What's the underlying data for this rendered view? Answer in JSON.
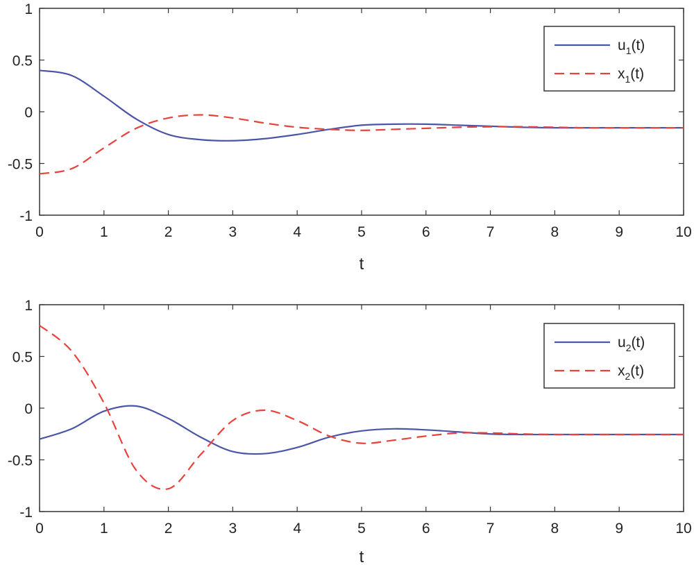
{
  "chart_data": [
    {
      "type": "line",
      "xlabel": "t",
      "ylabel": "",
      "xlim": [
        0,
        10
      ],
      "ylim": [
        -1,
        1
      ],
      "xticks": [
        "0",
        "1",
        "2",
        "3",
        "4",
        "5",
        "6",
        "7",
        "8",
        "9",
        "10"
      ],
      "yticks": [
        "1",
        "0.5",
        "0",
        "-0.5",
        "-1"
      ],
      "grid": false,
      "legend_position": "top-right",
      "x": [
        0,
        0.5,
        1,
        1.5,
        2,
        2.5,
        3,
        3.5,
        4,
        4.5,
        5,
        5.5,
        6,
        6.5,
        7,
        7.5,
        8,
        8.5,
        9,
        9.5,
        10
      ],
      "series": [
        {
          "name": "u1(t)",
          "legend_main": "u",
          "legend_sub": "1",
          "legend_tail": "(t)",
          "color": "#4a55a8",
          "dash": "solid",
          "values": [
            0.4,
            0.35,
            0.15,
            -0.07,
            -0.22,
            -0.27,
            -0.28,
            -0.26,
            -0.22,
            -0.17,
            -0.13,
            -0.12,
            -0.12,
            -0.13,
            -0.14,
            -0.15,
            -0.155,
            -0.155,
            -0.155,
            -0.155,
            -0.155
          ]
        },
        {
          "name": "x1(t)",
          "legend_main": "x",
          "legend_sub": "1",
          "legend_tail": "(t)",
          "color": "#e8423a",
          "dash": "dashed",
          "values": [
            -0.6,
            -0.55,
            -0.35,
            -0.16,
            -0.06,
            -0.03,
            -0.06,
            -0.11,
            -0.15,
            -0.17,
            -0.18,
            -0.17,
            -0.16,
            -0.15,
            -0.145,
            -0.145,
            -0.15,
            -0.155,
            -0.155,
            -0.155,
            -0.155
          ]
        }
      ]
    },
    {
      "type": "line",
      "xlabel": "t",
      "ylabel": "",
      "xlim": [
        0,
        10
      ],
      "ylim": [
        -1,
        1
      ],
      "xticks": [
        "0",
        "1",
        "2",
        "3",
        "4",
        "5",
        "6",
        "7",
        "8",
        "9",
        "10"
      ],
      "yticks": [
        "1",
        "0.5",
        "0",
        "-0.5",
        "-1"
      ],
      "grid": false,
      "legend_position": "top-right",
      "x": [
        0,
        0.5,
        1,
        1.5,
        2,
        2.5,
        3,
        3.5,
        4,
        4.5,
        5,
        5.5,
        6,
        6.5,
        7,
        7.5,
        8,
        8.5,
        9,
        9.5,
        10
      ],
      "series": [
        {
          "name": "u2(t)",
          "legend_main": "u",
          "legend_sub": "2",
          "legend_tail": "(t)",
          "color": "#4a55a8",
          "dash": "solid",
          "values": [
            -0.3,
            -0.2,
            -0.03,
            0.02,
            -0.1,
            -0.28,
            -0.42,
            -0.44,
            -0.38,
            -0.28,
            -0.22,
            -0.2,
            -0.21,
            -0.23,
            -0.25,
            -0.255,
            -0.255,
            -0.255,
            -0.255,
            -0.255,
            -0.255
          ]
        },
        {
          "name": "x2(t)",
          "legend_main": "x",
          "legend_sub": "2",
          "legend_tail": "(t)",
          "color": "#e8423a",
          "dash": "dashed",
          "values": [
            0.8,
            0.55,
            0.05,
            -0.6,
            -0.78,
            -0.45,
            -0.12,
            -0.02,
            -0.12,
            -0.27,
            -0.34,
            -0.31,
            -0.27,
            -0.24,
            -0.24,
            -0.25,
            -0.255,
            -0.255,
            -0.255,
            -0.255,
            -0.255
          ]
        }
      ]
    }
  ]
}
